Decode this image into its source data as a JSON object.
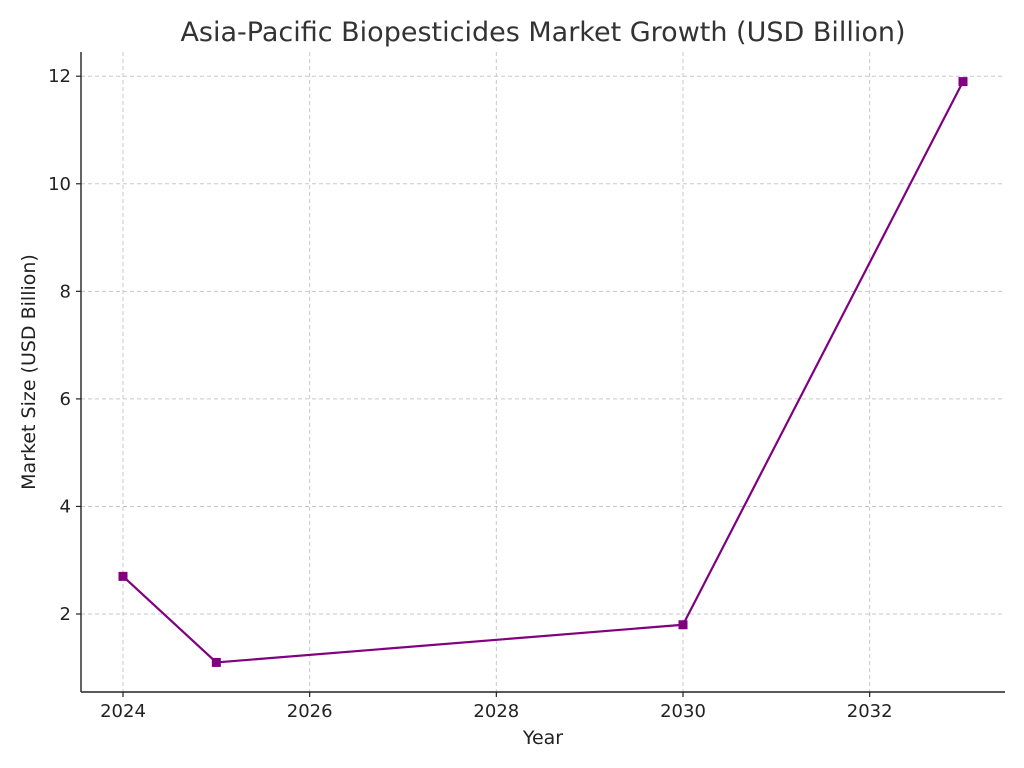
{
  "chart_data": {
    "type": "line",
    "title": "Asia-Pacific Biopesticides Market Growth (USD Billion)",
    "xlabel": "Year",
    "ylabel": "Market Size (USD Billion)",
    "xlim": [
      2023.55,
      2033.45
    ],
    "ylim": [
      0.55,
      12.45
    ],
    "xticks": [
      2024,
      2026,
      2028,
      2030,
      2032
    ],
    "yticks": [
      2,
      4,
      6,
      8,
      10,
      12
    ],
    "grid": true,
    "series": [
      {
        "x": [
          2024,
          2025,
          2030,
          2033
        ],
        "values": [
          2.7,
          1.1,
          1.8,
          11.9
        ],
        "color": "#800080",
        "marker": "square"
      }
    ]
  }
}
